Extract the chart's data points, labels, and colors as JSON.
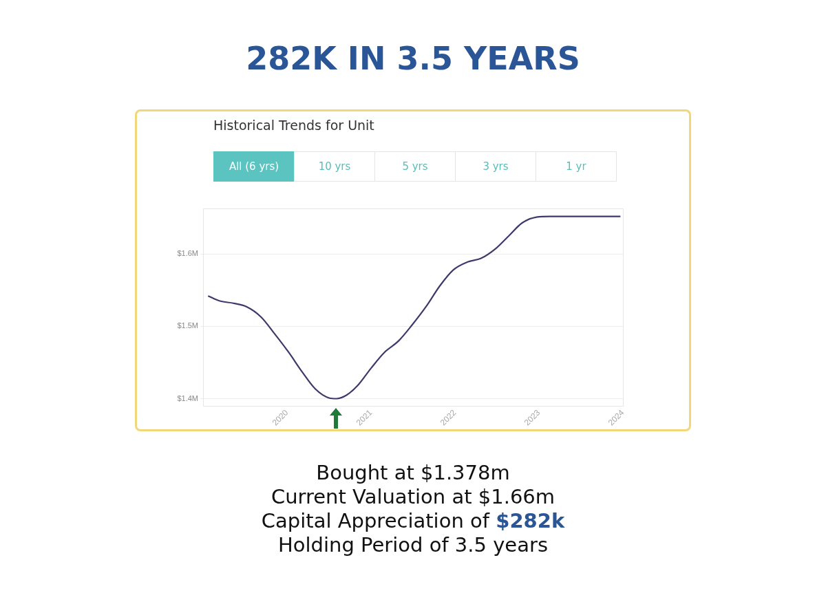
{
  "chart_data": {
    "type": "line",
    "title": "282K IN 3.5 YEARS",
    "subtitle": "Historical Trends for Unit",
    "x": [
      2019.06,
      2019.2,
      2019.36,
      2019.52,
      2019.69,
      2019.85,
      2020.02,
      2020.18,
      2020.34,
      2020.5,
      2020.59,
      2020.71,
      2020.84,
      2021.0,
      2021.16,
      2021.33,
      2021.49,
      2021.66,
      2021.82,
      2021.98,
      2022.15,
      2022.31,
      2022.48,
      2022.64,
      2022.8,
      2022.97,
      2023.13,
      2023.5,
      2023.97
    ],
    "series": [
      {
        "color": "#3d3a6b",
        "values": [
          1.542,
          1.535,
          1.532,
          1.527,
          1.513,
          1.49,
          1.464,
          1.437,
          1.413,
          1.401,
          1.4,
          1.405,
          1.418,
          1.442,
          1.464,
          1.48,
          1.502,
          1.528,
          1.556,
          1.578,
          1.589,
          1.594,
          1.607,
          1.625,
          1.643,
          1.651,
          1.652,
          1.652,
          1.652
        ]
      }
    ],
    "xlim": [
      2019,
      2024
    ],
    "xticks": [
      2020,
      2021,
      2022,
      2023,
      2024
    ],
    "ylim": [
      1.39,
      1.663
    ],
    "yticks": [
      {
        "value": 1.4,
        "label": "$1.4M"
      },
      {
        "value": 1.5,
        "label": "$1.5M"
      },
      {
        "value": 1.6,
        "label": "$1.6M"
      }
    ],
    "grid": "y",
    "legend": false,
    "marker": "none",
    "line_style": "solid",
    "annotations": [
      "All (6 yrs)",
      "10 yrs",
      "5 yrs",
      "3 yrs",
      "1 yr",
      "Bought at $1.378m",
      "Current Valuation at $1.66m",
      "Capital Appreciation of $282k",
      "Holding Period of 3.5 years"
    ]
  }
}
